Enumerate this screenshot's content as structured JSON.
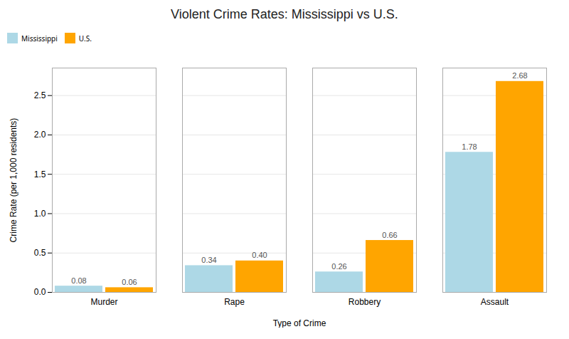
{
  "chart_data": {
    "type": "bar",
    "title": "Violent Crime Rates: Mississippi vs U.S.",
    "xlabel": "Type of Crime",
    "ylabel": "Crime Rate (per 1,000 residents)",
    "categories": [
      "Murder",
      "Rape",
      "Robbery",
      "Assault"
    ],
    "series": [
      {
        "name": "Mississippi",
        "color": "#ADD8E6",
        "values": [
          0.08,
          0.34,
          0.26,
          1.78
        ],
        "value_labels": [
          "0.08",
          "0.34",
          "0.26",
          "1.78"
        ]
      },
      {
        "name": "U.S.",
        "color": "#FFA500",
        "values": [
          0.06,
          0.4,
          0.66,
          2.68
        ],
        "value_labels": [
          "0.06",
          "0.40",
          "0.66",
          "2.68"
        ]
      }
    ],
    "ylim": [
      0,
      2.85
    ],
    "yticks": [
      {
        "value": 0.0,
        "label": "0.0"
      },
      0.5,
      {
        "value": 1.0,
        "label": "1.0"
      },
      1.5,
      {
        "value": 2.0,
        "label": "2.0"
      },
      2.5
    ],
    "grid": true,
    "legend": "upper left",
    "data_labels": true
  }
}
